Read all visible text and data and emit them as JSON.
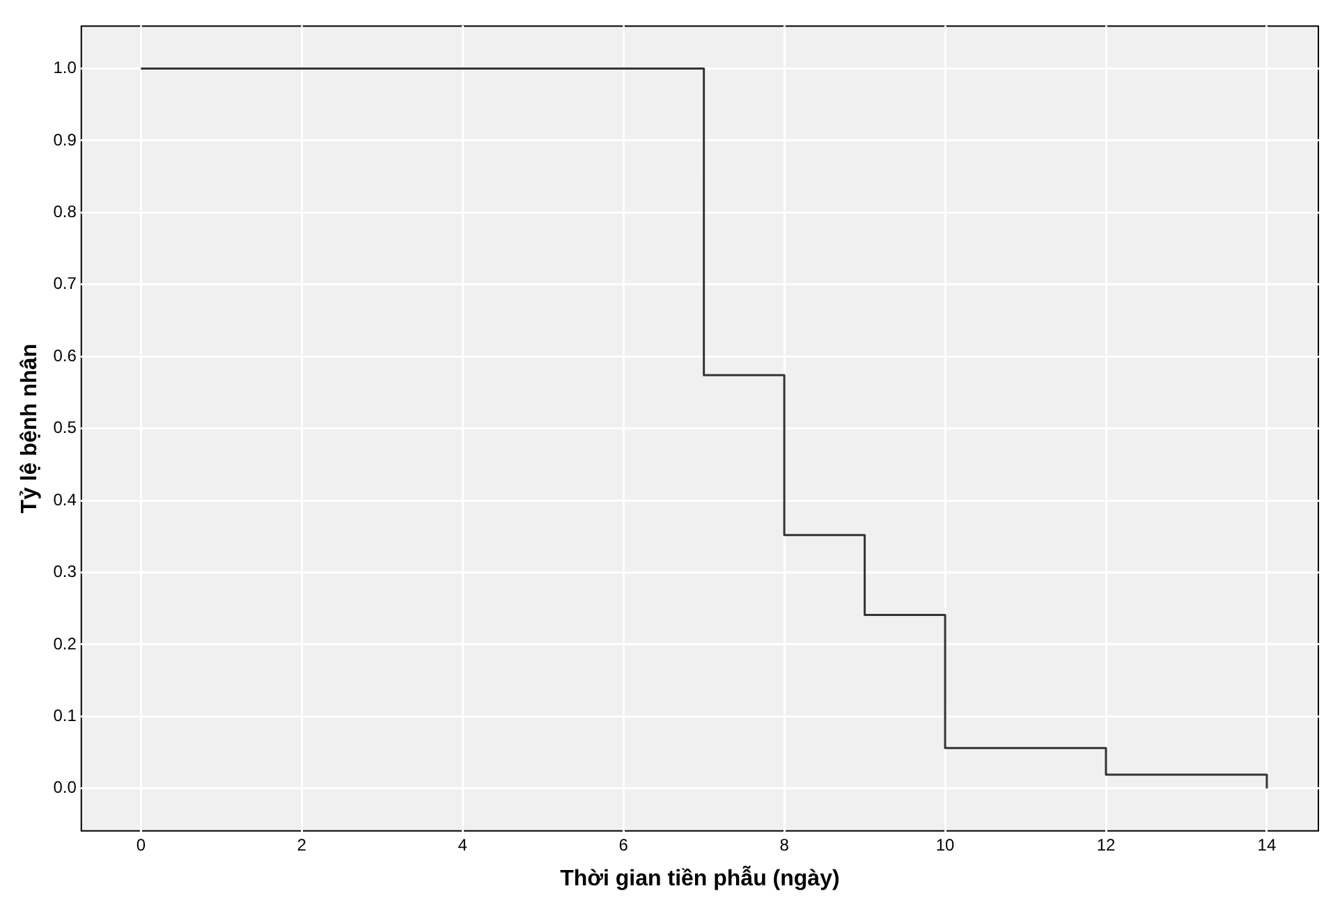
{
  "chart_data": {
    "type": "step",
    "xlabel": "Thời gian tiền phẫu (ngày)",
    "ylabel": "Tỷ lệ bệnh nhân",
    "x": [
      0,
      7,
      8,
      9,
      10,
      12,
      14
    ],
    "series": [
      {
        "color": "#333333",
        "values": [
          1.0,
          0.574,
          0.352,
          0.241,
          0.056,
          0.019,
          0.0
        ]
      }
    ],
    "xlim": [
      -0.75,
      14.65
    ],
    "xticks": [
      0,
      2,
      4,
      6,
      8,
      10,
      12,
      14
    ],
    "ylim": [
      -0.06,
      1.06
    ],
    "yticks": [
      {
        "value": 0,
        "label": "0.0"
      },
      {
        "value": 0.1,
        "label": "0.1"
      },
      {
        "value": 0.2,
        "label": "0.2"
      },
      {
        "value": 0.3,
        "label": "0.3"
      },
      {
        "value": 0.4,
        "label": "0.4"
      },
      {
        "value": 0.5,
        "label": "0.5"
      },
      {
        "value": 0.6,
        "label": "0.6"
      },
      {
        "value": 0.7,
        "label": "0.7"
      },
      {
        "value": 0.8,
        "label": "0.8"
      },
      {
        "value": 0.9,
        "label": "0.9"
      },
      {
        "value": 1,
        "label": "1.0"
      }
    ],
    "grid": true,
    "legend": false,
    "marker": "none",
    "line_style": "solid"
  }
}
